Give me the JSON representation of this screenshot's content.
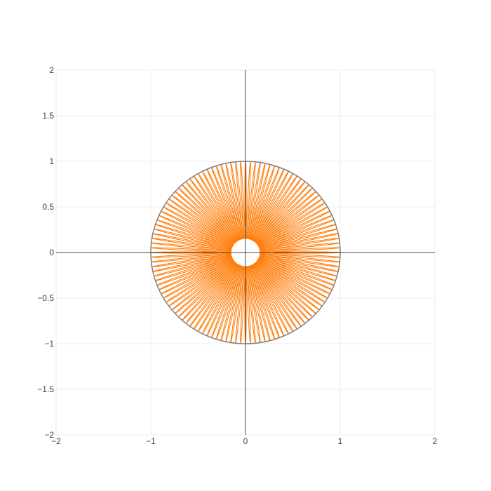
{
  "chart_data": {
    "type": "line",
    "title": "",
    "xlabel": "",
    "ylabel": "",
    "xlim": [
      -2,
      2
    ],
    "ylim": [
      -2,
      2
    ],
    "x_ticks": [
      -2,
      -1,
      0,
      1,
      2
    ],
    "y_ticks": [
      -2,
      -1.5,
      -1,
      -0.5,
      0,
      0.5,
      1,
      1.5,
      2
    ],
    "x_tick_labels": [
      "−2",
      "−1",
      "0",
      "1",
      "2"
    ],
    "y_tick_labels": [
      "−2",
      "−1.5",
      "−1",
      "−0.5",
      "0",
      "0.5",
      "1",
      "1.5",
      "2"
    ],
    "grid": true,
    "zero_lines": true,
    "legend": "none",
    "series": [
      {
        "color": "#ff7f0e",
        "form": "spirograph",
        "outer_radius": 1.0,
        "inner_radius": 0.15,
        "loops": 120
      },
      {
        "color": "#808080",
        "form": "circle",
        "radius": 1.0
      }
    ],
    "colors": {
      "orange": "#ff7f0e",
      "circle": "#808080",
      "grid": "#eeeeee",
      "zero_line": "#444444"
    }
  }
}
